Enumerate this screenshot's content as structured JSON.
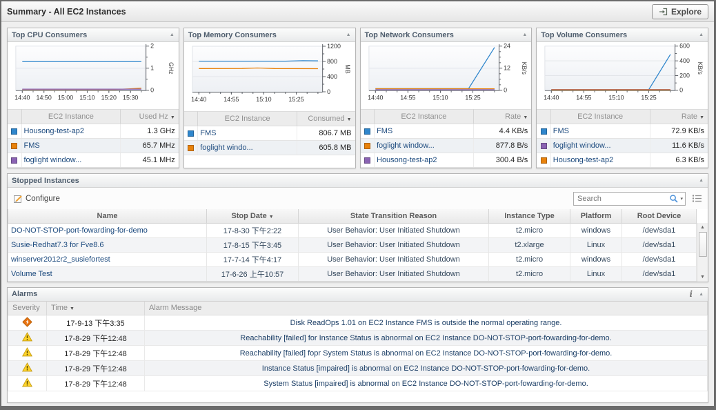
{
  "window": {
    "title": "Summary - All EC2 Instances",
    "explore_label": "Explore"
  },
  "colors": {
    "series_blue": "#2f86cc",
    "series_orange": "#e8820c",
    "series_purple": "#8a63b3",
    "link_navy": "#1c4a7e",
    "critical_icon": "#e87210",
    "warning_icon": "#ffd42a"
  },
  "consumer_panels": [
    {
      "title": "Top CPU Consumers",
      "instance_header": "EC2 Instance",
      "value_header": "Used Hz",
      "rows": [
        {
          "swatch": "#2f86cc",
          "name": "Housong-test-ap2",
          "value": "1.3 GHz"
        },
        {
          "swatch": "#e8820c",
          "name": "FMS",
          "value": "65.7 MHz"
        },
        {
          "swatch": "#8a63b3",
          "name": "foglight window...",
          "value": "45.1 MHz"
        }
      ]
    },
    {
      "title": "Top Memory Consumers",
      "instance_header": "EC2 Instance",
      "value_header": "Consumed",
      "rows": [
        {
          "swatch": "#2f86cc",
          "name": "FMS",
          "value": "806.7 MB"
        },
        {
          "swatch": "#e8820c",
          "name": "foglight windo...",
          "value": "605.8 MB"
        }
      ]
    },
    {
      "title": "Top Network Consumers",
      "instance_header": "EC2 Instance",
      "value_header": "Rate",
      "rows": [
        {
          "swatch": "#2f86cc",
          "name": "FMS",
          "value": "4.4 KB/s"
        },
        {
          "swatch": "#e8820c",
          "name": "foglight window...",
          "value": "877.8 B/s"
        },
        {
          "swatch": "#8a63b3",
          "name": "Housong-test-ap2",
          "value": "300.4 B/s"
        }
      ]
    },
    {
      "title": "Top Volume Consumers",
      "instance_header": "EC2 Instance",
      "value_header": "Rate",
      "rows": [
        {
          "swatch": "#2f86cc",
          "name": "FMS",
          "value": "72.9 KB/s"
        },
        {
          "swatch": "#8a63b3",
          "name": "foglight window...",
          "value": "11.6 KB/s"
        },
        {
          "swatch": "#e8820c",
          "name": "Housong-test-ap2",
          "value": "6.3 KB/s"
        }
      ]
    }
  ],
  "chart_data": [
    {
      "type": "line",
      "title": "Top CPU Consumers",
      "ylabel": "GHz",
      "ylim": [
        0,
        2
      ],
      "yticks": [
        0,
        1,
        2
      ],
      "yminor": 0.5,
      "x_range": [
        -3,
        57
      ],
      "x_minor_step": 5,
      "x_minor_max": 55,
      "xticks": [
        {
          "t": 0,
          "label": "14:40"
        },
        {
          "t": 10,
          "label": "14:50"
        },
        {
          "t": 20,
          "label": "15:00"
        },
        {
          "t": 30,
          "label": "15:10"
        },
        {
          "t": 40,
          "label": "15:20"
        },
        {
          "t": 50,
          "label": "15:30"
        }
      ],
      "series": [
        {
          "name": "Housong-test-ap2",
          "color": "#2f86cc",
          "points": [
            [
              0,
              1.3
            ],
            [
              55,
              1.3
            ]
          ]
        },
        {
          "name": "FMS",
          "color": "#e8820c",
          "points": [
            [
              0,
              0.035
            ],
            [
              43,
              0.04
            ],
            [
              50,
              0.07
            ],
            [
              55,
              0.1
            ]
          ]
        },
        {
          "name": "foglight window",
          "color": "#8a63b3",
          "points": [
            [
              0,
              0.05
            ],
            [
              55,
              0.05
            ]
          ]
        }
      ]
    },
    {
      "type": "line",
      "title": "Top Memory Consumers",
      "ylabel": "MB",
      "ylim": [
        0,
        1200
      ],
      "yticks": [
        0,
        400,
        800,
        1200
      ],
      "yminor": 200,
      "x_range": [
        -3,
        57
      ],
      "x_minor_step": 5,
      "x_minor_max": 55,
      "xticks": [
        {
          "t": 0,
          "label": "14:40"
        },
        {
          "t": 15,
          "label": "14:55"
        },
        {
          "t": 30,
          "label": "15:10"
        },
        {
          "t": 45,
          "label": "15:25"
        }
      ],
      "series": [
        {
          "name": "FMS",
          "color": "#2f86cc",
          "points": [
            [
              0,
              808
            ],
            [
              40,
              808
            ],
            [
              48,
              820
            ],
            [
              55,
              815
            ]
          ]
        },
        {
          "name": "foglight windo",
          "color": "#e8820c",
          "points": [
            [
              0,
              612
            ],
            [
              20,
              615
            ],
            [
              27,
              627
            ],
            [
              35,
              612
            ],
            [
              55,
              610
            ]
          ]
        }
      ]
    },
    {
      "type": "line",
      "title": "Top Network Consumers",
      "ylabel": "KB/s",
      "ylim": [
        0,
        24
      ],
      "yticks": [
        0,
        12,
        24
      ],
      "yminor": 3,
      "x_range": [
        -3,
        57
      ],
      "x_minor_step": 5,
      "x_minor_max": 55,
      "xticks": [
        {
          "t": 0,
          "label": "14:40"
        },
        {
          "t": 15,
          "label": "14:55"
        },
        {
          "t": 30,
          "label": "15:10"
        },
        {
          "t": 45,
          "label": "15:25"
        }
      ],
      "series": [
        {
          "name": "FMS",
          "color": "#2f86cc",
          "points": [
            [
              0,
              0.9
            ],
            [
              43,
              0.9
            ],
            [
              55,
              23.3
            ]
          ]
        },
        {
          "name": "foglight window",
          "color": "#e8820c",
          "points": [
            [
              0,
              0.85
            ],
            [
              55,
              0.85
            ]
          ]
        },
        {
          "name": "Housong-test-ap2",
          "color": "#8a63b3",
          "points": [
            [
              0,
              0.35
            ],
            [
              55,
              0.35
            ]
          ]
        }
      ]
    },
    {
      "type": "line",
      "title": "Top Volume Consumers",
      "ylabel": "KB/s",
      "ylim": [
        0,
        600
      ],
      "yticks": [
        0,
        200,
        400,
        600
      ],
      "yminor": 100,
      "x_range": [
        -3,
        57
      ],
      "x_minor_step": 5,
      "x_minor_max": 55,
      "xticks": [
        {
          "t": 0,
          "label": "14:40"
        },
        {
          "t": 15,
          "label": "14:55"
        },
        {
          "t": 30,
          "label": "15:10"
        },
        {
          "t": 45,
          "label": "15:25"
        }
      ],
      "series": [
        {
          "name": "FMS",
          "color": "#2f86cc",
          "points": [
            [
              0,
              9
            ],
            [
              45,
              9
            ],
            [
              55,
              487
            ]
          ]
        },
        {
          "name": "foglight window",
          "color": "#8a63b3",
          "points": [
            [
              0,
              12
            ],
            [
              55,
              12
            ]
          ]
        },
        {
          "name": "Housong-test-ap2",
          "color": "#e8820c",
          "points": [
            [
              0,
              6
            ],
            [
              55,
              6
            ]
          ]
        }
      ]
    }
  ],
  "stopped": {
    "title": "Stopped Instances",
    "configure_label": "Configure",
    "search_placeholder": "Search",
    "columns": [
      "Name",
      "Stop Date",
      "State Transition Reason",
      "Instance Type",
      "Platform",
      "Root Device"
    ],
    "sort_column": "Stop Date",
    "rows": [
      {
        "name": "DO-NOT-STOP-port-fowarding-for-demo",
        "stop_date": "17-8-30 下午2:22",
        "reason": "User Behavior: User Initiated Shutdown",
        "type": "t2.micro",
        "platform": "windows",
        "root": "/dev/sda1"
      },
      {
        "name": "Susie-Redhat7.3 for Fve8.6",
        "stop_date": "17-8-15 下午3:45",
        "reason": "User Behavior: User Initiated Shutdown",
        "type": "t2.xlarge",
        "platform": "Linux",
        "root": "/dev/sda1"
      },
      {
        "name": "winserver2012r2_susiefortest",
        "stop_date": "17-7-14 下午4:17",
        "reason": "User Behavior: User Initiated Shutdown",
        "type": "t2.micro",
        "platform": "windows",
        "root": "/dev/sda1"
      },
      {
        "name": "Volume Test",
        "stop_date": "17-6-26 上午10:57",
        "reason": "User Behavior: User Initiated Shutdown",
        "type": "t2.micro",
        "platform": "Linux",
        "root": "/dev/sda1"
      }
    ]
  },
  "alarms": {
    "title": "Alarms",
    "columns": [
      "Severity",
      "Time",
      "Alarm Message"
    ],
    "sort_column": "Time",
    "rows": [
      {
        "severity": "critical",
        "time": "17-9-13 下午3:35",
        "message": "Disk ReadOps 1.01 on EC2 Instance FMS is outside the normal operating range."
      },
      {
        "severity": "warning",
        "time": "17-8-29 下午12:48",
        "message": "Reachability [failed] for Instance Status is abnormal on EC2 Instance DO-NOT-STOP-port-fowarding-for-demo."
      },
      {
        "severity": "warning",
        "time": "17-8-29 下午12:48",
        "message": "Reachability [failed] fopr System Status is abnormal on EC2 Instance DO-NOT-STOP-port-fowarding-for-demo."
      },
      {
        "severity": "warning",
        "time": "17-8-29 下午12:48",
        "message": "Instance Status [impaired] is abnormal on EC2 Instance DO-NOT-STOP-port-fowarding-for-demo."
      },
      {
        "severity": "warning",
        "time": "17-8-29 下午12:48",
        "message": "System Status [impaired] is abnormal on EC2 Instance DO-NOT-STOP-port-fowarding-for-demo."
      }
    ]
  }
}
